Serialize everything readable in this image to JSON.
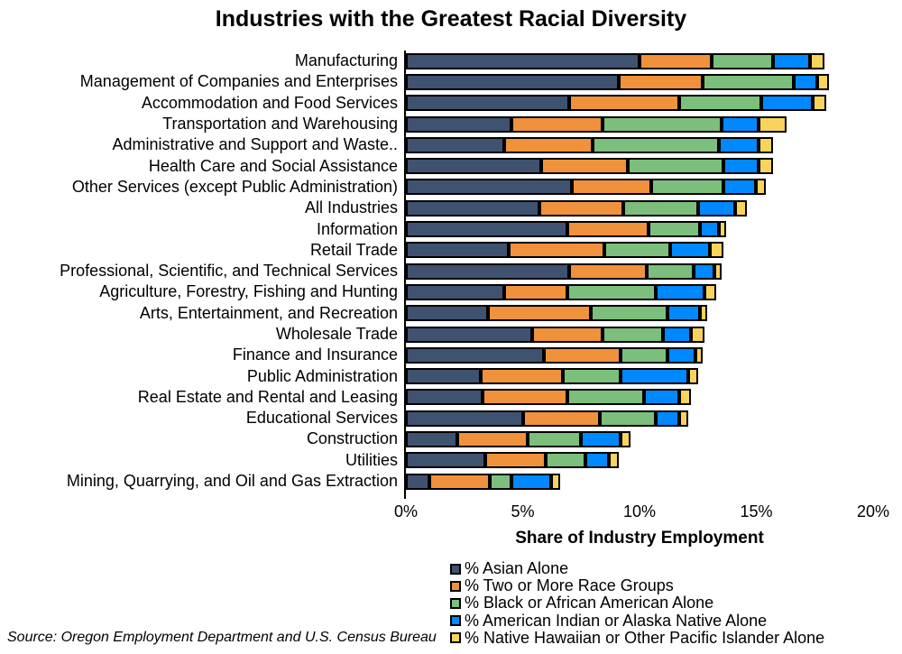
{
  "source": "Source: Oregon Employment Department and U.S. Census Bureau",
  "chart_data": {
    "type": "bar",
    "stacked": true,
    "orientation": "horizontal",
    "title": "Industries with the Greatest Racial Diversity",
    "xlabel": "Share of Industry Employment",
    "xlim": [
      0,
      20
    ],
    "x_tick_values": [
      0,
      5,
      10,
      15,
      20
    ],
    "x_tick_labels": [
      "0%",
      "5%",
      "10%",
      "15%",
      "20%"
    ],
    "grid": false,
    "legend_position": "bottom",
    "bar_border_color": "#000000",
    "categories": [
      "Manufacturing",
      "Management of Companies and Enterprises",
      "Accommodation and Food Services",
      "Transportation and Warehousing",
      "Administrative and Support and Waste..",
      "Health Care and Social Assistance",
      "Other Services (except Public Administration)",
      "All Industries",
      "Information",
      "Retail Trade",
      "Professional, Scientific, and Technical Services",
      "Agriculture, Forestry, Fishing and Hunting",
      "Arts, Entertainment, and Recreation",
      "Wholesale Trade",
      "Finance and Insurance",
      "Public Administration",
      "Real Estate and Rental and Leasing",
      "Educational Services",
      "Construction",
      "Utilities",
      "Mining, Quarrying, and Oil and Gas Extraction"
    ],
    "series": [
      {
        "name": "% Asian Alone",
        "color": "#3F5270",
        "values": [
          10.0,
          9.1,
          7.0,
          4.5,
          4.2,
          5.8,
          7.1,
          5.7,
          6.9,
          4.4,
          7.0,
          4.2,
          3.5,
          5.4,
          5.9,
          3.2,
          3.3,
          5.0,
          2.2,
          3.4,
          1.0
        ]
      },
      {
        "name": "% Two or More Race Groups",
        "color": "#F0913C",
        "values": [
          3.1,
          3.6,
          4.7,
          3.9,
          3.8,
          3.7,
          3.4,
          3.6,
          3.5,
          4.1,
          3.3,
          2.7,
          4.4,
          3.0,
          3.3,
          3.5,
          3.6,
          3.3,
          3.0,
          2.6,
          2.6
        ]
      },
      {
        "name": "% Black or African American Alone",
        "color": "#7CBF7C",
        "values": [
          2.6,
          3.9,
          3.5,
          5.1,
          5.4,
          4.1,
          3.1,
          3.2,
          2.2,
          2.8,
          2.0,
          3.8,
          3.3,
          2.6,
          2.0,
          2.5,
          3.3,
          2.4,
          2.3,
          1.7,
          0.9
        ]
      },
      {
        "name": "% American Indian or Alaska Native Alone",
        "color": "#0088FE",
        "values": [
          1.6,
          1.0,
          2.2,
          1.6,
          1.7,
          1.5,
          1.4,
          1.6,
          0.8,
          1.7,
          0.9,
          2.1,
          1.4,
          1.2,
          1.2,
          2.9,
          1.5,
          1.0,
          1.7,
          1.0,
          1.7
        ]
      },
      {
        "name": "% Native Hawaiian or Other Pacific Islander Alone",
        "color": "#F9D45C",
        "values": [
          0.6,
          0.5,
          0.6,
          1.2,
          0.6,
          0.6,
          0.4,
          0.5,
          0.3,
          0.6,
          0.3,
          0.5,
          0.3,
          0.6,
          0.3,
          0.4,
          0.5,
          0.4,
          0.4,
          0.4,
          0.4
        ]
      }
    ]
  }
}
